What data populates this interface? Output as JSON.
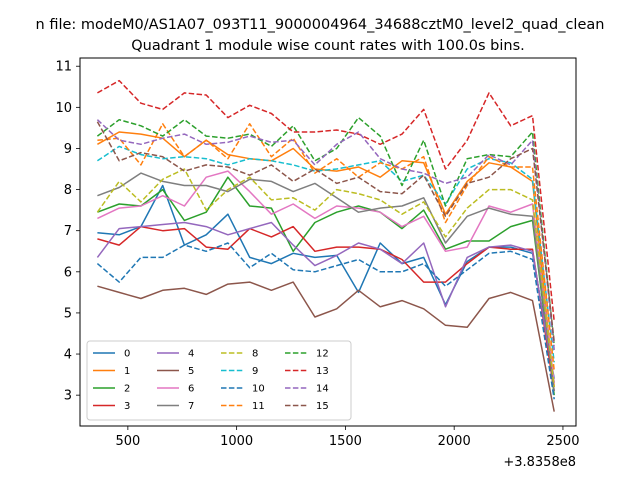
{
  "figure": {
    "suptitle": "n file: modeM0/AS1A07_093T11_9000004964_34688cztM0_level2_quad_clean",
    "title": "Quadrant 1 module wise count rates with 100.0s bins.",
    "offset_text": "+3.8358e8"
  },
  "chart_data": {
    "type": "line",
    "title": "Quadrant 1 module wise count rates with 100.0s bins.",
    "xlabel": "",
    "ylabel": "",
    "x_offset": 383580000,
    "xlim": [
      280,
      2560
    ],
    "ylim": [
      2.25,
      11.2
    ],
    "xticks": [
      500,
      1000,
      1500,
      2000,
      2500
    ],
    "xtick_labels": [
      "500",
      "1000",
      "1500",
      "2000",
      "2500"
    ],
    "yticks": [
      3,
      4,
      5,
      6,
      7,
      8,
      9,
      10,
      11
    ],
    "ytick_labels": [
      "3",
      "4",
      "5",
      "6",
      "7",
      "8",
      "9",
      "10",
      "11"
    ],
    "grid": false,
    "legend_position": "lower-left",
    "legend_columns": 4,
    "x": [
      360,
      460,
      560,
      660,
      760,
      860,
      960,
      1060,
      1160,
      1260,
      1360,
      1460,
      1560,
      1660,
      1760,
      1860,
      1960,
      2060,
      2160,
      2260,
      2360,
      2460
    ],
    "series": [
      {
        "name": "0",
        "color": "#1f77b4",
        "style": "solid",
        "values": [
          6.95,
          6.9,
          7.1,
          8.1,
          6.65,
          6.9,
          7.4,
          6.35,
          6.2,
          6.45,
          6.35,
          6.4,
          5.5,
          6.7,
          6.2,
          6.35,
          5.2,
          6.25,
          6.6,
          6.6,
          6.45,
          3.4
        ]
      },
      {
        "name": "1",
        "color": "#ff7f0e",
        "style": "solid",
        "values": [
          9.1,
          9.4,
          9.35,
          9.25,
          8.8,
          9.2,
          8.85,
          8.75,
          8.7,
          9.0,
          8.5,
          8.45,
          8.55,
          8.3,
          8.7,
          8.65,
          7.4,
          8.2,
          8.65,
          8.55,
          8.2,
          3.2
        ]
      },
      {
        "name": "2",
        "color": "#2ca02c",
        "style": "solid",
        "values": [
          7.45,
          7.65,
          7.6,
          8.0,
          7.25,
          7.45,
          8.3,
          7.6,
          7.55,
          6.5,
          7.2,
          7.45,
          7.6,
          7.45,
          7.05,
          7.5,
          6.55,
          6.75,
          6.75,
          7.1,
          7.25,
          3.0
        ]
      },
      {
        "name": "3",
        "color": "#d62728",
        "style": "solid",
        "values": [
          6.8,
          6.65,
          7.1,
          7.0,
          7.05,
          6.6,
          6.55,
          7.05,
          6.85,
          7.1,
          6.5,
          6.6,
          6.6,
          6.55,
          6.3,
          5.75,
          5.75,
          6.2,
          6.6,
          6.55,
          6.55,
          3.1
        ]
      },
      {
        "name": "4",
        "color": "#9467bd",
        "style": "solid",
        "values": [
          6.35,
          7.05,
          7.1,
          7.15,
          7.2,
          7.1,
          6.9,
          7.05,
          7.2,
          6.65,
          6.15,
          6.4,
          6.7,
          6.55,
          6.2,
          6.7,
          5.15,
          6.35,
          6.6,
          6.65,
          6.5,
          3.3
        ]
      },
      {
        "name": "5",
        "color": "#8c564b",
        "style": "solid",
        "values": [
          5.65,
          5.5,
          5.35,
          5.55,
          5.6,
          5.45,
          5.7,
          5.75,
          5.55,
          5.75,
          4.9,
          5.1,
          5.55,
          5.15,
          5.3,
          5.1,
          4.7,
          4.65,
          5.35,
          5.5,
          5.3,
          2.6
        ]
      },
      {
        "name": "6",
        "color": "#e377c2",
        "style": "solid",
        "values": [
          7.3,
          7.55,
          7.6,
          7.85,
          7.6,
          8.3,
          8.45,
          7.95,
          7.4,
          7.65,
          7.3,
          7.6,
          7.55,
          7.45,
          7.1,
          7.35,
          6.5,
          6.6,
          7.6,
          7.45,
          7.65,
          3.3
        ]
      },
      {
        "name": "7",
        "color": "#7f7f7f",
        "style": "solid",
        "values": [
          7.85,
          8.05,
          8.4,
          8.2,
          8.1,
          8.1,
          7.95,
          8.25,
          8.2,
          7.95,
          8.15,
          7.8,
          7.45,
          7.55,
          7.6,
          7.8,
          6.7,
          7.35,
          7.55,
          7.4,
          7.35,
          3.1
        ]
      },
      {
        "name": "8",
        "color": "#bcbd22",
        "style": "dashed",
        "values": [
          7.45,
          8.2,
          7.7,
          8.25,
          8.5,
          7.5,
          8.0,
          8.3,
          7.75,
          7.8,
          7.5,
          8.0,
          7.9,
          7.75,
          7.4,
          7.7,
          6.85,
          7.55,
          8.0,
          8.0,
          7.75,
          3.2
        ]
      },
      {
        "name": "9",
        "color": "#17becf",
        "style": "dashed",
        "values": [
          8.7,
          9.05,
          8.85,
          8.75,
          8.8,
          8.75,
          8.6,
          8.75,
          8.7,
          8.6,
          8.45,
          8.5,
          8.6,
          8.7,
          8.2,
          8.35,
          7.65,
          8.5,
          8.75,
          8.65,
          8.25,
          3.8
        ]
      },
      {
        "name": "10",
        "color": "#1f77b4",
        "style": "dashed",
        "values": [
          6.2,
          5.75,
          6.35,
          6.35,
          6.65,
          6.5,
          6.7,
          6.1,
          6.45,
          6.05,
          6.0,
          6.15,
          6.3,
          6.0,
          6.0,
          6.2,
          5.65,
          6.05,
          6.45,
          6.5,
          6.3,
          2.9
        ]
      },
      {
        "name": "11",
        "color": "#ff7f0e",
        "style": "dashed",
        "values": [
          9.2,
          9.25,
          8.6,
          9.6,
          8.8,
          9.2,
          8.75,
          9.6,
          8.8,
          9.25,
          8.4,
          8.75,
          8.3,
          8.65,
          8.5,
          8.8,
          7.2,
          8.1,
          8.8,
          8.55,
          8.55,
          3.6
        ]
      },
      {
        "name": "12",
        "color": "#2ca02c",
        "style": "dashed",
        "values": [
          9.3,
          9.7,
          9.55,
          9.3,
          9.7,
          9.3,
          9.25,
          9.35,
          9.05,
          9.55,
          8.7,
          9.0,
          9.75,
          9.3,
          8.1,
          9.2,
          7.6,
          8.75,
          8.85,
          8.8,
          9.4,
          4.2
        ]
      },
      {
        "name": "13",
        "color": "#d62728",
        "style": "dashed",
        "values": [
          10.35,
          10.65,
          10.1,
          9.95,
          10.35,
          10.3,
          9.75,
          10.05,
          9.85,
          9.4,
          9.4,
          9.45,
          9.35,
          9.1,
          9.35,
          9.95,
          8.5,
          9.2,
          10.35,
          9.55,
          9.8,
          4.8
        ]
      },
      {
        "name": "14",
        "color": "#9467bd",
        "style": "dashed",
        "values": [
          9.7,
          9.2,
          9.1,
          9.25,
          9.35,
          9.1,
          9.15,
          9.3,
          9.15,
          9.2,
          8.6,
          9.1,
          9.4,
          8.75,
          8.5,
          8.4,
          8.15,
          8.3,
          8.85,
          8.6,
          9.2,
          4.1
        ]
      },
      {
        "name": "15",
        "color": "#8c564b",
        "style": "dashed",
        "values": [
          9.65,
          8.7,
          8.9,
          8.8,
          8.45,
          8.6,
          8.55,
          8.35,
          8.6,
          8.2,
          8.5,
          8.15,
          8.3,
          7.95,
          7.9,
          8.35,
          7.35,
          8.15,
          8.3,
          8.75,
          9.0,
          4.3
        ]
      }
    ]
  }
}
